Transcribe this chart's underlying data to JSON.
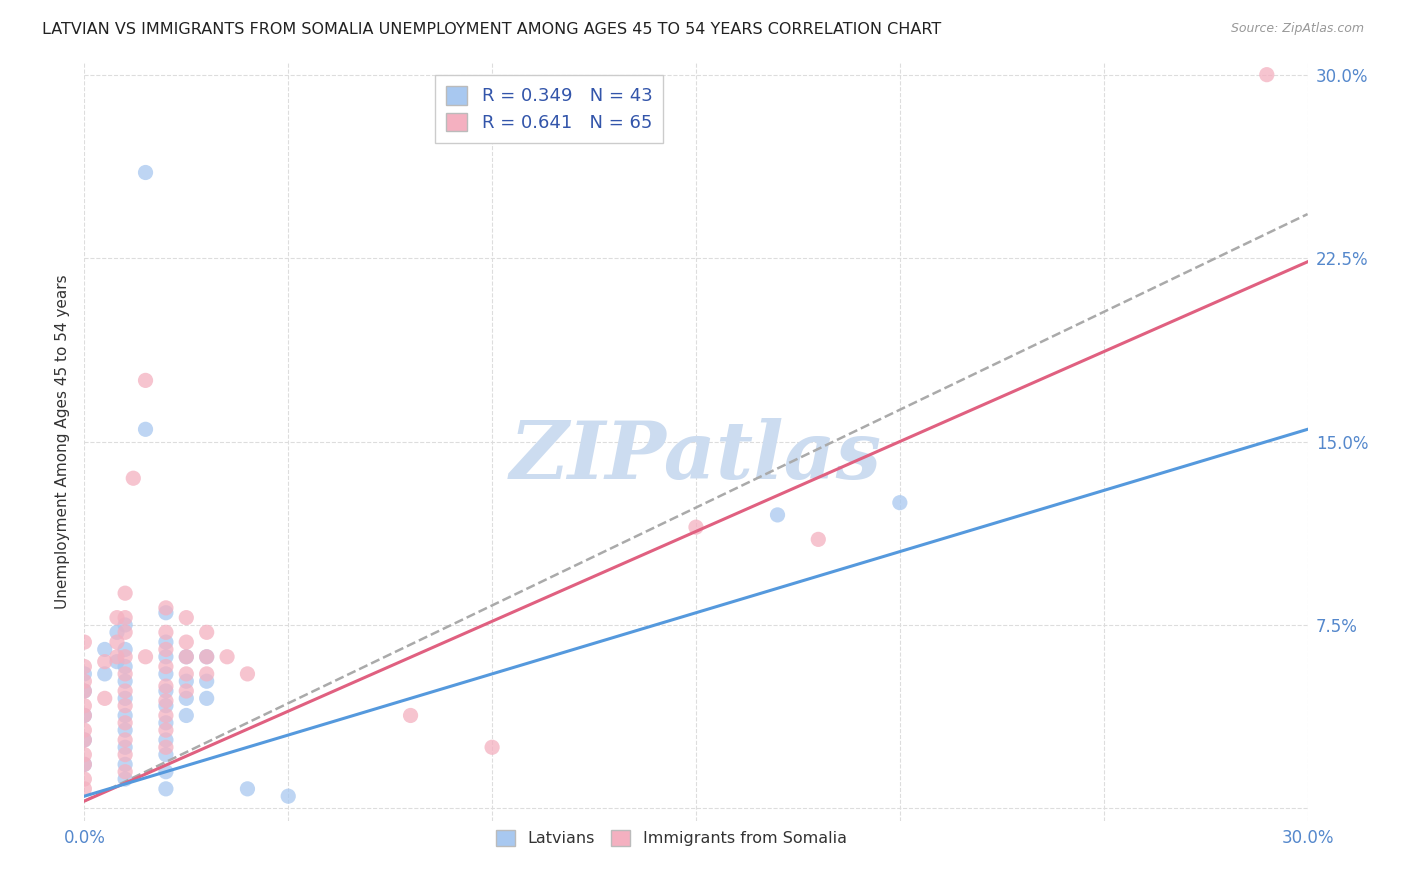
{
  "title": "LATVIAN VS IMMIGRANTS FROM SOMALIA UNEMPLOYMENT AMONG AGES 45 TO 54 YEARS CORRELATION CHART",
  "source": "Source: ZipAtlas.com",
  "ylabel": "Unemployment Among Ages 45 to 54 years",
  "xlim": [
    0.0,
    0.3
  ],
  "ylim": [
    -0.005,
    0.305
  ],
  "xticks": [
    0.0,
    0.05,
    0.1,
    0.15,
    0.2,
    0.25,
    0.3
  ],
  "yticks": [
    0.0,
    0.075,
    0.15,
    0.225,
    0.3
  ],
  "xticklabels": [
    "0.0%",
    "",
    "",
    "",
    "",
    "",
    "30.0%"
  ],
  "yticklabels": [
    "",
    "7.5%",
    "15.0%",
    "22.5%",
    "30.0%"
  ],
  "latvians_color": "#a8c8f0",
  "somalia_color": "#f4b0c0",
  "latvians_line_color": "#5599dd",
  "somalia_line_color": "#e06080",
  "trendline_latvians_slope": 0.5,
  "trendline_latvians_intercept": 0.005,
  "trendline_somalia_slope": 0.735,
  "trendline_somalia_intercept": 0.003,
  "trendline_dashed_slope": 0.8,
  "trendline_dashed_intercept": 0.003,
  "watermark": "ZIPatlas",
  "watermark_color": "#c8d8f0",
  "background_color": "#ffffff",
  "grid_color": "#dddddd",
  "latvians_data": [
    [
      0.0,
      0.055
    ],
    [
      0.0,
      0.048
    ],
    [
      0.0,
      0.038
    ],
    [
      0.0,
      0.028
    ],
    [
      0.0,
      0.018
    ],
    [
      0.005,
      0.065
    ],
    [
      0.005,
      0.055
    ],
    [
      0.008,
      0.072
    ],
    [
      0.008,
      0.06
    ],
    [
      0.01,
      0.075
    ],
    [
      0.01,
      0.065
    ],
    [
      0.01,
      0.058
    ],
    [
      0.01,
      0.052
    ],
    [
      0.01,
      0.045
    ],
    [
      0.01,
      0.038
    ],
    [
      0.01,
      0.032
    ],
    [
      0.01,
      0.025
    ],
    [
      0.01,
      0.018
    ],
    [
      0.01,
      0.012
    ],
    [
      0.015,
      0.26
    ],
    [
      0.015,
      0.155
    ],
    [
      0.02,
      0.08
    ],
    [
      0.02,
      0.068
    ],
    [
      0.02,
      0.062
    ],
    [
      0.02,
      0.055
    ],
    [
      0.02,
      0.048
    ],
    [
      0.02,
      0.042
    ],
    [
      0.02,
      0.035
    ],
    [
      0.02,
      0.028
    ],
    [
      0.02,
      0.022
    ],
    [
      0.02,
      0.015
    ],
    [
      0.02,
      0.008
    ],
    [
      0.025,
      0.062
    ],
    [
      0.025,
      0.052
    ],
    [
      0.025,
      0.045
    ],
    [
      0.025,
      0.038
    ],
    [
      0.03,
      0.062
    ],
    [
      0.03,
      0.052
    ],
    [
      0.03,
      0.045
    ],
    [
      0.04,
      0.008
    ],
    [
      0.05,
      0.005
    ],
    [
      0.17,
      0.12
    ],
    [
      0.2,
      0.125
    ]
  ],
  "somalia_data": [
    [
      0.0,
      0.068
    ],
    [
      0.0,
      0.058
    ],
    [
      0.0,
      0.052
    ],
    [
      0.0,
      0.048
    ],
    [
      0.0,
      0.042
    ],
    [
      0.0,
      0.038
    ],
    [
      0.0,
      0.032
    ],
    [
      0.0,
      0.028
    ],
    [
      0.0,
      0.022
    ],
    [
      0.0,
      0.018
    ],
    [
      0.0,
      0.012
    ],
    [
      0.0,
      0.008
    ],
    [
      0.005,
      0.06
    ],
    [
      0.005,
      0.045
    ],
    [
      0.008,
      0.078
    ],
    [
      0.008,
      0.068
    ],
    [
      0.008,
      0.062
    ],
    [
      0.01,
      0.088
    ],
    [
      0.01,
      0.078
    ],
    [
      0.01,
      0.072
    ],
    [
      0.01,
      0.062
    ],
    [
      0.01,
      0.055
    ],
    [
      0.01,
      0.048
    ],
    [
      0.01,
      0.042
    ],
    [
      0.01,
      0.035
    ],
    [
      0.01,
      0.028
    ],
    [
      0.01,
      0.022
    ],
    [
      0.01,
      0.015
    ],
    [
      0.012,
      0.135
    ],
    [
      0.015,
      0.175
    ],
    [
      0.015,
      0.062
    ],
    [
      0.02,
      0.082
    ],
    [
      0.02,
      0.072
    ],
    [
      0.02,
      0.065
    ],
    [
      0.02,
      0.058
    ],
    [
      0.02,
      0.05
    ],
    [
      0.02,
      0.044
    ],
    [
      0.02,
      0.038
    ],
    [
      0.02,
      0.032
    ],
    [
      0.02,
      0.025
    ],
    [
      0.025,
      0.078
    ],
    [
      0.025,
      0.068
    ],
    [
      0.025,
      0.062
    ],
    [
      0.025,
      0.055
    ],
    [
      0.025,
      0.048
    ],
    [
      0.03,
      0.072
    ],
    [
      0.03,
      0.062
    ],
    [
      0.03,
      0.055
    ],
    [
      0.035,
      0.062
    ],
    [
      0.04,
      0.055
    ],
    [
      0.08,
      0.038
    ],
    [
      0.1,
      0.025
    ],
    [
      0.15,
      0.115
    ],
    [
      0.18,
      0.11
    ],
    [
      0.29,
      0.3
    ]
  ]
}
